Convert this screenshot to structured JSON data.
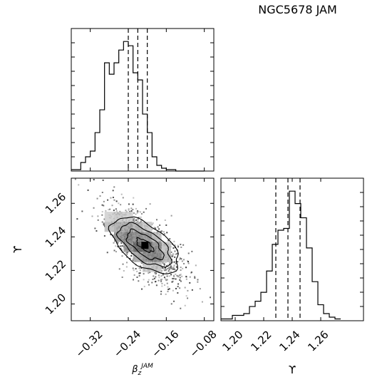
{
  "title": "NGC5678 JAM",
  "chart_data": [
    {
      "type": "histogram",
      "panel": "top-left marginal",
      "variable": "beta_z^JAM",
      "bins_x": [
        -0.36,
        -0.35,
        -0.34,
        -0.33,
        -0.32,
        -0.31,
        -0.3,
        -0.29,
        -0.28,
        -0.27,
        -0.26,
        -0.25,
        -0.24,
        -0.23,
        -0.22,
        -0.21,
        -0.2,
        -0.19,
        -0.18,
        -0.17,
        -0.16,
        -0.15,
        -0.14,
        -0.13,
        -0.12,
        -0.11,
        -0.1,
        -0.09,
        -0.08
      ],
      "counts": [
        1,
        1,
        6,
        10,
        14,
        27,
        43,
        76,
        68,
        76,
        85,
        91,
        88,
        69,
        64,
        40,
        27,
        10,
        4,
        2,
        1,
        1,
        0,
        0,
        0,
        0,
        0,
        0
      ],
      "quantiles": [
        -0.24,
        -0.22,
        -0.2
      ],
      "xlim": [
        -0.36,
        -0.06
      ]
    },
    {
      "type": "scatter",
      "panel": "bottom-left 2D",
      "xlabel": "β_z^JAM",
      "ylabel": "ϒ",
      "xticks": [
        "−0.32",
        "−0.24",
        "−0.16",
        "−0.08"
      ],
      "yticks": [
        "1.20",
        "1.22",
        "1.24",
        "1.26"
      ],
      "xlim": [
        -0.36,
        -0.06
      ],
      "ylim": [
        1.19,
        1.275
      ],
      "correlation": "negative",
      "peak": [
        -0.205,
        1.235
      ]
    },
    {
      "type": "histogram",
      "panel": "bottom-right marginal",
      "variable": "ϒ",
      "xlabel": "ϒ",
      "xticks": [
        "1.20",
        "1.22",
        "1.24",
        "1.26"
      ],
      "bins_x": [
        1.19,
        1.194,
        1.198,
        1.202,
        1.206,
        1.21,
        1.214,
        1.218,
        1.222,
        1.226,
        1.23,
        1.234,
        1.238,
        1.242,
        1.246,
        1.25,
        1.254,
        1.258,
        1.262,
        1.266,
        1.27,
        1.274
      ],
      "counts": [
        1,
        1,
        3,
        3,
        4,
        8,
        11,
        16,
        28,
        43,
        51,
        52,
        73,
        66,
        58,
        41,
        22,
        9,
        4,
        2,
        1
      ],
      "quantiles": [
        1.2285,
        1.237,
        1.2455
      ],
      "xlim": [
        1.19,
        1.29
      ]
    }
  ]
}
